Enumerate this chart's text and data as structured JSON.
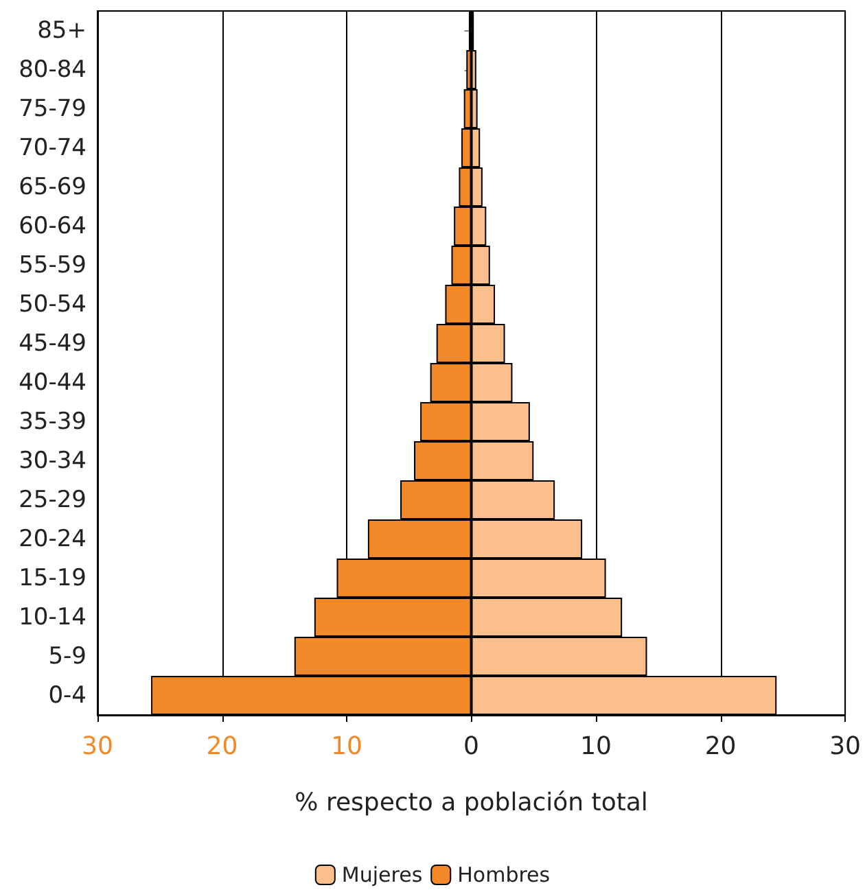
{
  "chart_data": {
    "type": "bar",
    "orientation": "horizontal",
    "stacked": true,
    "xlabel": "% respecto a población total",
    "categories": [
      "85+",
      "80-84",
      "75-79",
      "70-74",
      "65-69",
      "60-64",
      "55-59",
      "50-54",
      "45-49",
      "40-44",
      "35-39",
      "30-34",
      "25-29",
      "20-24",
      "15-19",
      "10-14",
      "5-9",
      "0-4"
    ],
    "series": [
      {
        "name": "Mujeres",
        "color": "#fbbf8c",
        "values": [
          0.2,
          0.4,
          0.5,
          0.7,
          0.9,
          1.2,
          1.5,
          1.9,
          2.7,
          3.3,
          4.7,
          5.0,
          6.7,
          8.9,
          10.8,
          12.1,
          14.1,
          24.5
        ]
      },
      {
        "name": "Hombres",
        "color": "#f38828",
        "values": [
          -0.2,
          -0.4,
          -0.6,
          -0.8,
          -1.0,
          -1.4,
          -1.6,
          -2.1,
          -2.8,
          -3.3,
          -4.1,
          -4.6,
          -5.7,
          -8.3,
          -10.8,
          -12.6,
          -14.2,
          -25.7
        ]
      }
    ],
    "xlim": [
      -30,
      30
    ],
    "xticks": [
      {
        "value": -30,
        "label": "30"
      },
      {
        "value": -20,
        "label": "20"
      },
      {
        "value": -10,
        "label": "10"
      },
      0,
      10,
      20,
      30
    ],
    "grid": "x",
    "legend": "bottom"
  }
}
